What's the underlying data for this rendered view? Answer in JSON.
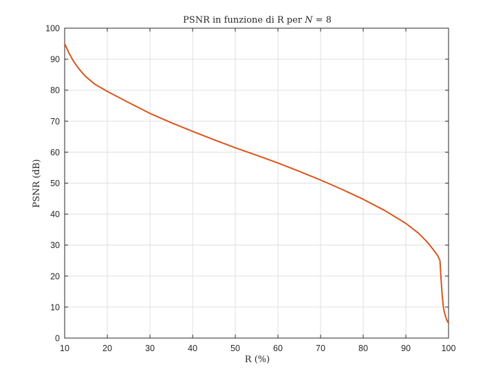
{
  "chart_data": {
    "type": "line",
    "title_parts": {
      "prefix": "PSNR in funzione di R per ",
      "variable": "N",
      "suffix": " = 8"
    },
    "xlabel": "R (%)",
    "ylabel": "PSNR (dB)",
    "xlim": [
      10,
      100
    ],
    "ylim": [
      0,
      100
    ],
    "xticks": [
      10,
      20,
      30,
      40,
      50,
      60,
      70,
      80,
      90,
      100
    ],
    "yticks": [
      0,
      10,
      20,
      30,
      40,
      50,
      60,
      70,
      80,
      90,
      100
    ],
    "grid": true,
    "series": [
      {
        "color": "#d95319",
        "x": [
          10,
          11,
          12,
          13,
          14,
          15,
          17,
          20,
          25,
          30,
          35,
          40,
          45,
          50,
          55,
          60,
          65,
          70,
          75,
          80,
          85,
          90,
          93,
          95,
          96,
          97,
          97.5,
          98,
          98.2,
          98.5,
          98.8,
          99,
          99.3,
          99.6,
          100
        ],
        "y": [
          95,
          92,
          89.5,
          87.5,
          85.8,
          84.3,
          82,
          79.6,
          76,
          72.5,
          69.5,
          66.7,
          64,
          61.4,
          59,
          56.5,
          53.8,
          51,
          48,
          44.8,
          41.2,
          37,
          33.8,
          31,
          29.3,
          27.5,
          26.5,
          25,
          20,
          14,
          10,
          8.5,
          7,
          5.8,
          4.8
        ]
      }
    ]
  }
}
